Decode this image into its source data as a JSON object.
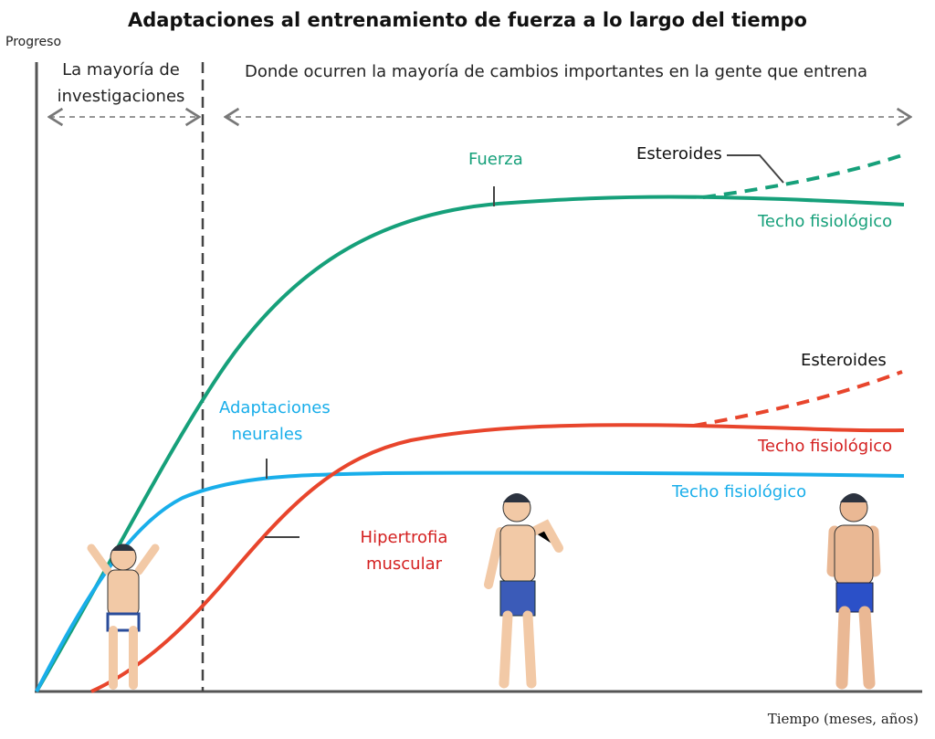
{
  "title": "Adaptaciones al entrenamiento de fuerza a lo largo del tiempo",
  "y_axis_label": "Progreso",
  "x_axis_label": "Tiempo (meses, años)",
  "regions": {
    "left": "La mayoría de investigaciones",
    "left_line1": "La mayoría de",
    "left_line2": "investigaciones",
    "right": "Donde ocurren la mayoría de cambios importantes en la gente que entrena"
  },
  "curves": {
    "strength": {
      "label": "Fuerza",
      "ceiling": "Techo fisiológico",
      "steroids": "Esteroides",
      "color": "#16a07a"
    },
    "neural": {
      "label_line1": "Adaptaciones",
      "label_line2": "neurales",
      "ceiling": "Techo fisiológico",
      "color": "#19aeea"
    },
    "hypertrophy": {
      "label_line1": "Hipertrofia",
      "label_line2": "muscular",
      "ceiling": "Techo fisiológico",
      "steroids": "Esteroides",
      "color": "#e8452c",
      "label_color": "#d42121"
    }
  }
}
